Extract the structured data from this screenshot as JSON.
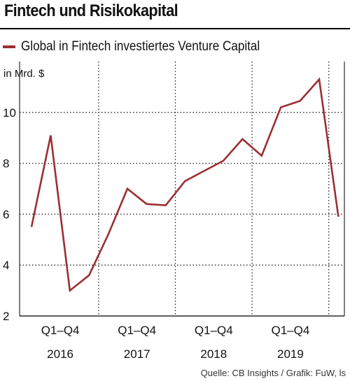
{
  "colors": {
    "line": "#9b2f33",
    "text": "#111111",
    "grid": "#222222"
  },
  "chart_data": {
    "type": "line",
    "title": "Fintech und Risikokapital",
    "legend_placement": "top-left",
    "ylabel": "in Mrd. $",
    "ylim": [
      2,
      12
    ],
    "yticks": [
      2,
      4,
      6,
      8,
      10
    ],
    "grid": true,
    "x": [
      "2016 Q1",
      "2016 Q2",
      "2016 Q3",
      "2016 Q4",
      "2017 Q1",
      "2017 Q2",
      "2017 Q3",
      "2017 Q4",
      "2018 Q1",
      "2018 Q2",
      "2018 Q3",
      "2018 Q4",
      "2019 Q1",
      "2019 Q2",
      "2019 Q3",
      "2019 Q4",
      "2020 Q1"
    ],
    "series": [
      {
        "name": "Global in Fintech investiertes Venture Capital",
        "values": [
          5.5,
          9.1,
          3.0,
          3.6,
          5.2,
          7.0,
          6.4,
          6.35,
          7.3,
          7.7,
          8.1,
          8.95,
          8.3,
          10.2,
          10.45,
          11.3,
          5.9
        ]
      }
    ],
    "x_groups": [
      {
        "quarter_label": "Q1–Q4",
        "year": "2016"
      },
      {
        "quarter_label": "Q1–Q4",
        "year": "2017"
      },
      {
        "quarter_label": "Q1–Q4",
        "year": "2018"
      },
      {
        "quarter_label": "Q1–Q4",
        "year": "2019"
      }
    ],
    "source": "Quelle: CB Insights / Grafik: FuW, ls"
  }
}
